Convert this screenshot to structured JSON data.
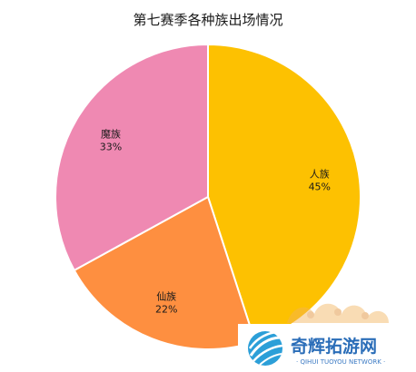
{
  "chart_data": {
    "type": "pie",
    "title": "第七赛季各种族出场情况",
    "slices": [
      {
        "name": "人族",
        "value": 45,
        "value_label": "45%",
        "color": "#FDC101"
      },
      {
        "name": "仙族",
        "value": 22,
        "value_label": "22%",
        "color": "#FE8F40"
      },
      {
        "name": "魔族",
        "value": 33,
        "value_label": "33%",
        "color": "#EF89B2"
      }
    ],
    "start_angle_deg": 0,
    "direction": "clockwise",
    "slice_border_color": "#ffffff",
    "legend": "none"
  },
  "watermark": {
    "main_text": "奇辉拓游网",
    "sub_text": "· QIHUI TUOYOU NETWORK ·",
    "brand_color": "#2a6db8"
  }
}
